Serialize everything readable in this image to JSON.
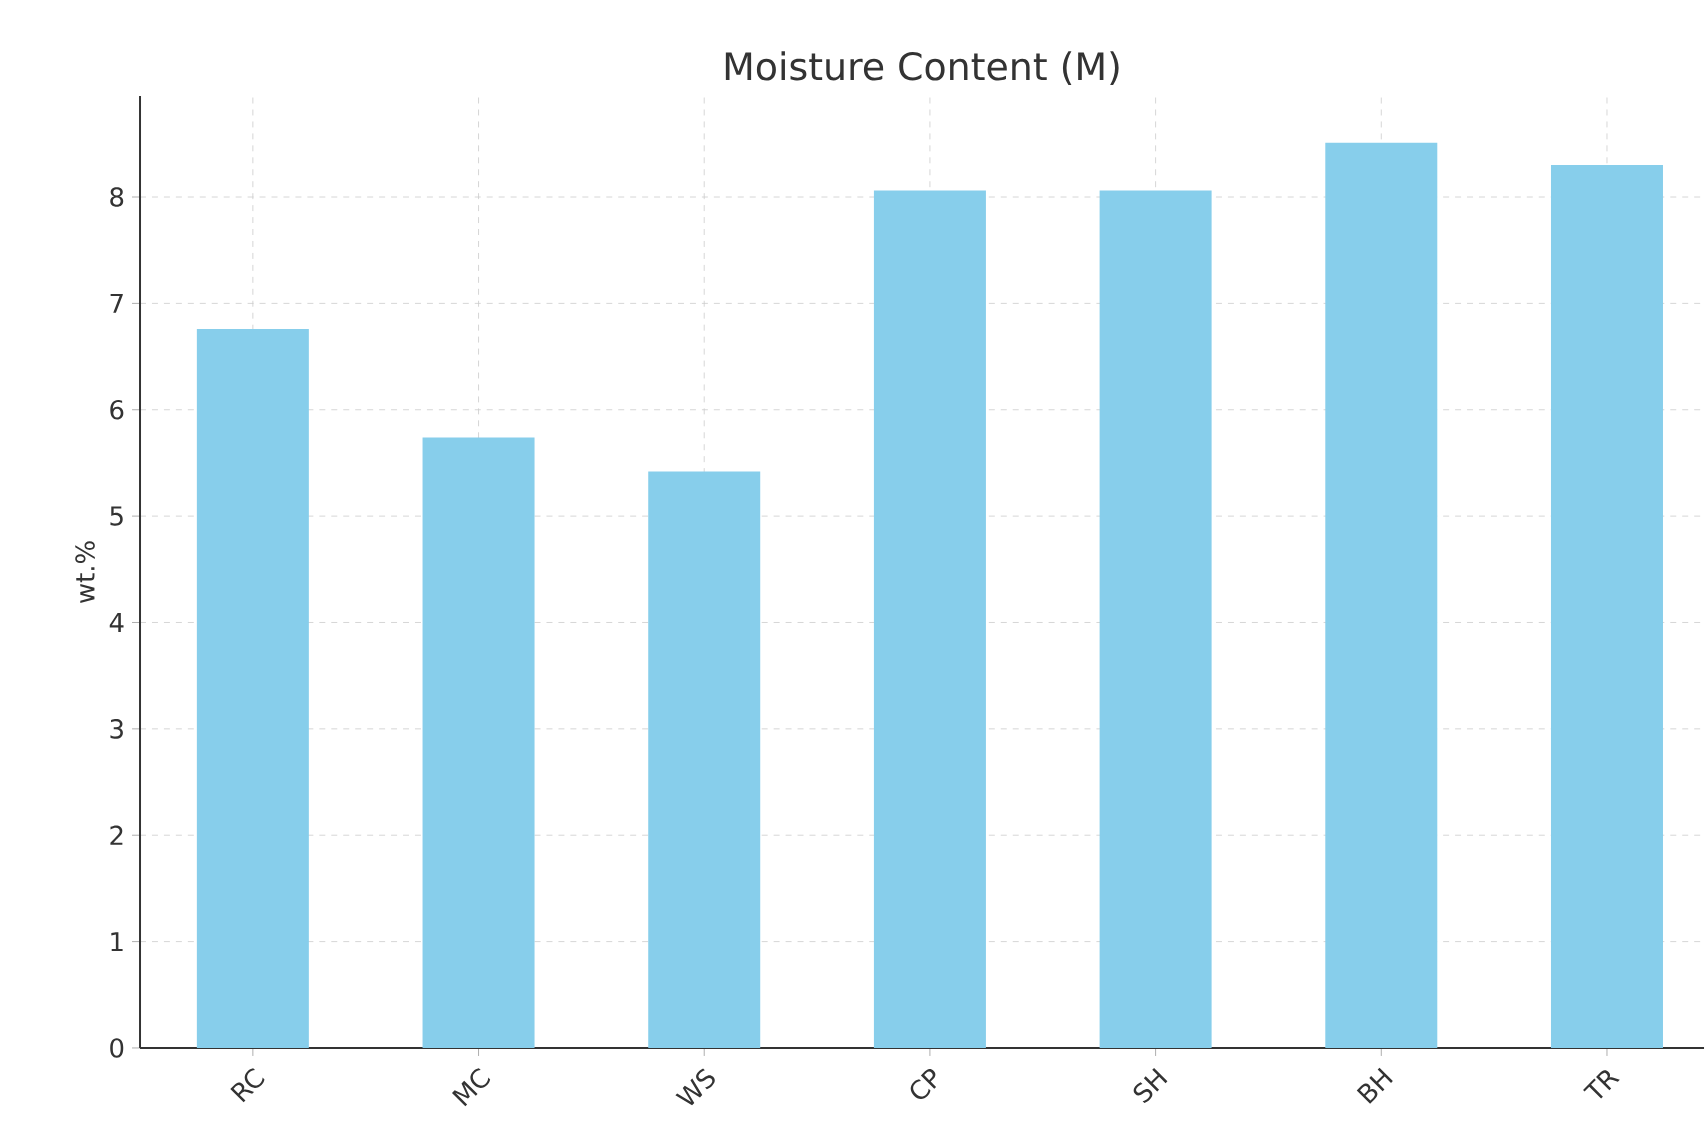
{
  "chart_data": {
    "type": "bar",
    "title": "Moisture Content (M)",
    "ylabel": "wt.%",
    "categories": [
      "RC",
      "MC",
      "WS",
      "CP",
      "SH",
      "BH",
      "TR"
    ],
    "values": [
      6.76,
      5.74,
      5.42,
      8.06,
      8.06,
      8.51,
      8.3
    ],
    "color": "#87ceeb",
    "ylim": [
      0,
      8.95
    ],
    "yticks": [
      0,
      1,
      2,
      3,
      4,
      5,
      6,
      7,
      8
    ],
    "grid": true
  }
}
